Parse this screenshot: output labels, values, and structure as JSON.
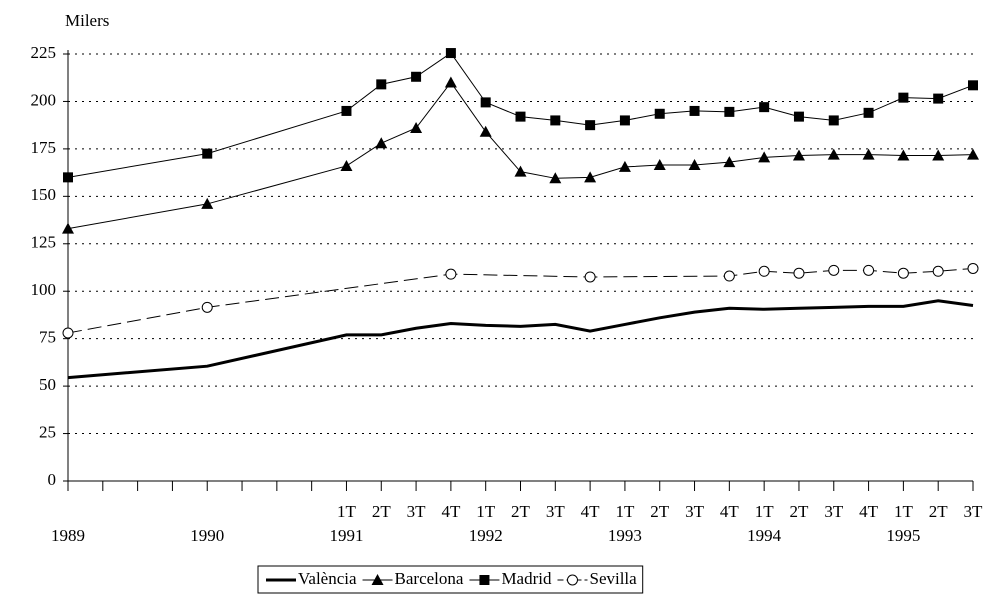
{
  "chart_data": {
    "type": "line",
    "y_label": "Milers",
    "categories": [
      null,
      null,
      null,
      null,
      null,
      null,
      null,
      null,
      "1T",
      "2T",
      "3T",
      "4T",
      "1T",
      "2T",
      "3T",
      "4T",
      "1T",
      "2T",
      "3T",
      "4T",
      "1T",
      "2T",
      "3T",
      "4T",
      "1T",
      "2T",
      "3T"
    ],
    "year_labels": [
      "1989",
      null,
      null,
      null,
      "1990",
      null,
      null,
      null,
      "1991",
      null,
      null,
      null,
      "1992",
      null,
      null,
      null,
      "1993",
      null,
      null,
      null,
      "1994",
      null,
      null,
      null,
      "1995",
      null,
      null
    ],
    "series": [
      {
        "name": "València",
        "color": "#000000",
        "marker": "none",
        "dash": false,
        "width": 3,
        "values": [
          54.5,
          null,
          null,
          null,
          60.5,
          null,
          null,
          null,
          77,
          77,
          80.5,
          83,
          82,
          81.5,
          82.5,
          79,
          82.5,
          86,
          89,
          91,
          90.5,
          91,
          91.5,
          92,
          92,
          95,
          92.5
        ]
      },
      {
        "name": "Barcelona",
        "color": "#000000",
        "marker": "triangle",
        "dash": false,
        "width": 1,
        "values": [
          133,
          null,
          null,
          null,
          146,
          null,
          null,
          null,
          166,
          178,
          186,
          210,
          184,
          163,
          159.5,
          160,
          165.5,
          166.5,
          166.5,
          168,
          170.5,
          171.5,
          172,
          172,
          171.5,
          171.5,
          172
        ]
      },
      {
        "name": "Madrid",
        "color": "#000000",
        "marker": "square",
        "dash": false,
        "width": 1,
        "values": [
          160,
          null,
          null,
          null,
          172.5,
          null,
          null,
          null,
          195,
          209,
          213,
          225.5,
          199.5,
          192,
          190,
          187.5,
          190,
          193.5,
          195,
          194.5,
          197,
          192,
          190,
          194,
          202,
          201.5,
          208.5
        ]
      },
      {
        "name": "Sevilla",
        "color": "#000000",
        "marker": "circle",
        "dash": true,
        "width": 1,
        "values": [
          78,
          null,
          null,
          null,
          91.5,
          null,
          null,
          null,
          null,
          null,
          null,
          109,
          null,
          null,
          null,
          107.5,
          null,
          null,
          null,
          108,
          110.5,
          109.5,
          111,
          111,
          109.5,
          110.5,
          112
        ]
      }
    ],
    "connect_gaps": true,
    "ylim": [
      0,
      225
    ],
    "yticks": [
      0,
      25,
      50,
      75,
      100,
      125,
      150,
      175,
      200,
      225
    ],
    "grid": true,
    "legend": "bottom"
  }
}
